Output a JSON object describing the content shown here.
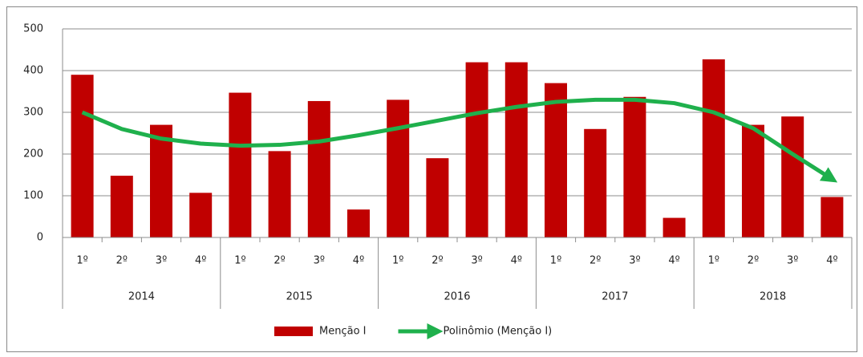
{
  "chart_data": {
    "type": "bar",
    "categories": [
      "1º",
      "2º",
      "3º",
      "4º",
      "1º",
      "2º",
      "3º",
      "4º",
      "1º",
      "2º",
      "3º",
      "4º",
      "1º",
      "2º",
      "3º",
      "4º",
      "1º",
      "2º",
      "3º",
      "4º"
    ],
    "years": [
      "2014",
      "2015",
      "2016",
      "2017",
      "2018"
    ],
    "series": [
      {
        "name": "Menção I",
        "type": "bar",
        "color": "#c00000",
        "values": [
          390,
          148,
          270,
          107,
          347,
          207,
          327,
          67,
          330,
          190,
          420,
          420,
          370,
          260,
          337,
          47,
          427,
          270,
          290,
          97
        ]
      },
      {
        "name": "Polinômio (Menção I)",
        "type": "line",
        "color": "#1fb04c",
        "values": [
          300,
          260,
          237,
          225,
          220,
          222,
          230,
          245,
          262,
          280,
          298,
          313,
          325,
          330,
          330,
          322,
          300,
          262,
          200,
          140
        ]
      }
    ],
    "ylim": [
      0,
      500
    ],
    "yticks": [
      0,
      100,
      200,
      300,
      400,
      500
    ],
    "grid": true,
    "legend": "bottom"
  }
}
